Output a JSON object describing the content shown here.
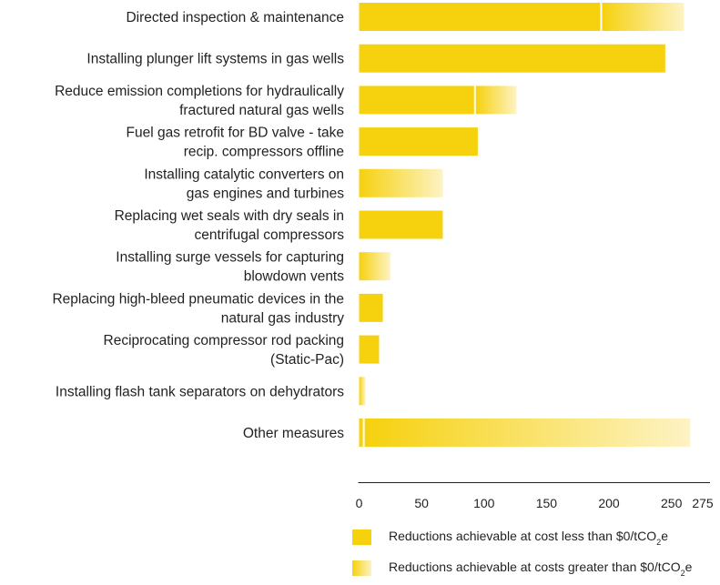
{
  "chart_data": {
    "type": "bar",
    "orientation": "horizontal",
    "stacked": true,
    "categories": [
      [
        "Directed inspection & maintenance"
      ],
      [
        "Installing plunger lift systems in gas wells"
      ],
      [
        "Reduce emission completions for hydraulically",
        "fractured natural gas wells"
      ],
      [
        "Fuel gas retrofit for BD valve - take",
        "recip. compressors offline"
      ],
      [
        "Installing catalytic converters on",
        "gas engines and turbines"
      ],
      [
        "Replacing wet seals with dry seals in",
        "centrifugal compressors"
      ],
      [
        "Installing surge vessels for capturing",
        "blowdown vents"
      ],
      [
        "Replacing high-bleed pneumatic devices in the",
        "natural gas industry"
      ],
      [
        "Reciprocating compressor rod packing",
        "(Static-Pac)"
      ],
      [
        "Installing flash tank separators on dehydrators"
      ],
      [
        "Other measures"
      ]
    ],
    "series": [
      {
        "name": "Reductions achievable at cost less than $0/tCO2e",
        "color": "#f6d10e",
        "values": [
          193,
          245,
          92,
          95,
          0,
          67,
          0,
          19,
          16,
          0,
          3
        ]
      },
      {
        "name": "Reductions achievable at costs greater than $0/tCO2e",
        "color": "#f6d10e",
        "color_end": "#fdf3c4",
        "values": [
          67,
          0,
          34,
          0,
          67,
          0,
          25,
          0,
          0,
          5,
          262
        ]
      }
    ],
    "xticks": [
      0,
      50,
      100,
      150,
      200,
      250,
      275
    ],
    "xlim": [
      0,
      275
    ],
    "grid": false,
    "legend": {
      "position": "bottom",
      "items": [
        {
          "text": "Reductions achievable at cost less than $0/tCO",
          "sub": "2",
          "tail": "e"
        },
        {
          "text": "Reductions achievable at costs greater than $0/tCO",
          "sub": "2",
          "tail": "e"
        }
      ]
    }
  }
}
